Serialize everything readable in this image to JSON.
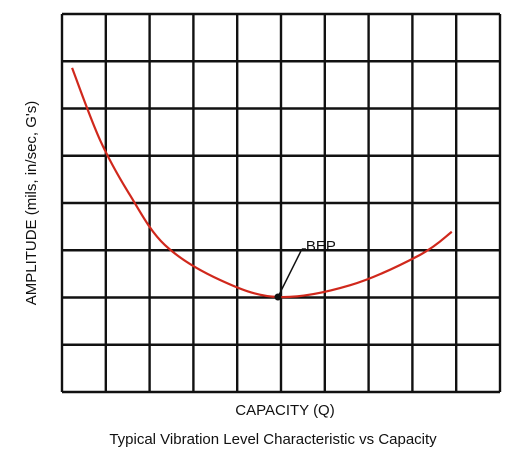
{
  "chart_data": {
    "type": "line",
    "title": "Typical Vibration Level Characteristic vs Capacity",
    "x_label": "CAPACITY (Q)",
    "y_label": "AMPLITUDE (mils, in/sec, G's)",
    "x": [
      0.23,
      0.87,
      1.55,
      2.35,
      3.61,
      4.93,
      6.58,
      8.17,
      8.9
    ],
    "series": [
      {
        "color": "#d0281c",
        "values": [
          6.86,
          5.33,
          4.17,
          3.11,
          2.37,
          2.01,
          2.26,
          2.9,
          3.39
        ]
      }
    ],
    "xlim": [
      0,
      10
    ],
    "ylim": [
      0,
      8
    ],
    "xticks": [
      0,
      1,
      2,
      3,
      4,
      5,
      6,
      7,
      8,
      9,
      10
    ],
    "yticks": [
      0,
      1,
      2,
      3,
      4,
      5,
      6,
      7,
      8
    ],
    "grid": true,
    "annotation": {
      "text": "BEP",
      "x": 4.93,
      "y": 2.01
    }
  }
}
